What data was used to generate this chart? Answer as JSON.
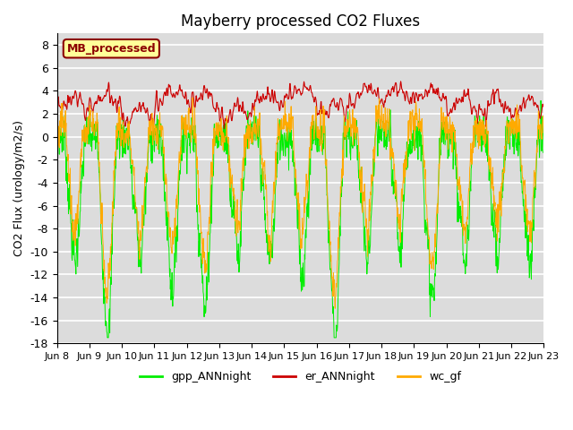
{
  "title": "Mayberry processed CO2 Fluxes",
  "ylabel": "CO2 Flux (urology/m2/s)",
  "ylim": [
    -18,
    9
  ],
  "legend_label": "MB_processed",
  "legend_box_color": "#ffff99",
  "legend_box_edge": "#8b0000",
  "line_colors": {
    "gpp": "#00ee00",
    "er": "#cc0000",
    "wc": "#ffaa00"
  },
  "line_labels": [
    "gpp_ANNnight",
    "er_ANNnight",
    "wc_gf"
  ],
  "background_color": "#dcdcdc",
  "n_days": 15,
  "start_day": 8,
  "points_per_day": 96
}
